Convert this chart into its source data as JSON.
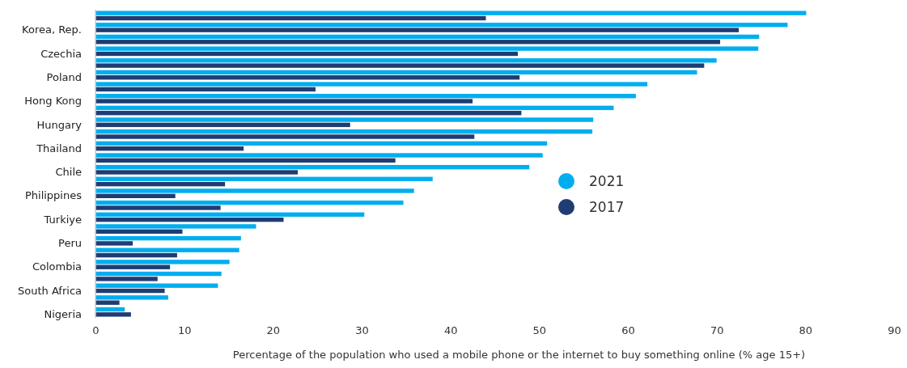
{
  "chart_data": {
    "type": "bar",
    "orientation": "horizontal",
    "xlabel": "Percentage of the population who used a mobile phone or the internet to buy something online (% age 15+)",
    "categories": [
      null,
      "Korea, Rep.",
      null,
      "Czechia",
      null,
      "Poland",
      null,
      "Hong Kong",
      null,
      "Hungary",
      null,
      "Thailand",
      null,
      "Chile",
      null,
      "Philippines",
      null,
      "Turkiye",
      null,
      "Peru",
      null,
      "Colombia",
      null,
      "South Africa",
      null,
      "Nigeria"
    ],
    "series": [
      {
        "name": "2021",
        "color": "#00aeef",
        "values": [
          80.1,
          78.0,
          74.8,
          74.7,
          70.0,
          67.8,
          62.2,
          60.9,
          58.4,
          56.1,
          56.0,
          50.9,
          50.4,
          48.9,
          38.0,
          35.9,
          34.7,
          30.3,
          18.1,
          16.4,
          16.2,
          15.1,
          14.2,
          13.8,
          8.2,
          3.3
        ]
      },
      {
        "name": "2017",
        "color": "#1f3c73",
        "values": [
          44.0,
          72.5,
          70.4,
          47.6,
          68.6,
          47.8,
          24.8,
          42.5,
          48.0,
          28.7,
          42.7,
          16.7,
          33.8,
          22.8,
          14.6,
          9.0,
          14.1,
          21.2,
          9.8,
          4.2,
          9.2,
          8.4,
          7.0,
          7.8,
          2.7,
          4.0
        ]
      }
    ],
    "xlim": [
      0,
      90
    ],
    "xticks": [
      0,
      10,
      20,
      30,
      40,
      50,
      60,
      70,
      80,
      90
    ],
    "grid": false,
    "legend": "right"
  }
}
